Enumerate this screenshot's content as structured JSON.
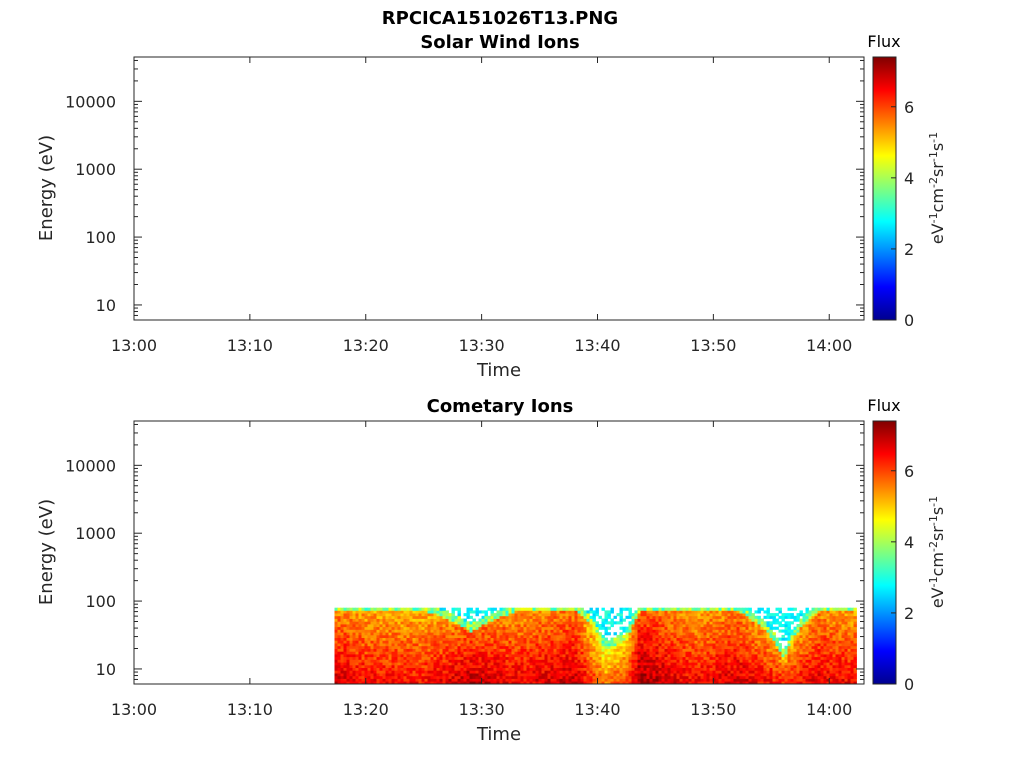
{
  "figure": {
    "title": "RPCICA151026T13.PNG"
  },
  "chart_data": [
    {
      "type": "heatmap",
      "title": "Solar Wind Ions",
      "xlabel": "Time",
      "ylabel": "Energy (eV)",
      "x_ticks": [
        "13:00",
        "13:10",
        "13:20",
        "13:30",
        "13:40",
        "13:50",
        "14:00"
      ],
      "xlim_minutes": [
        0,
        63
      ],
      "y_scale": "log",
      "y_ticks": [
        {
          "value": 10,
          "label": "10"
        },
        {
          "value": 100,
          "label": "100"
        },
        {
          "value": 1000,
          "label": "1000"
        },
        {
          "value": 10000,
          "label": "10000"
        }
      ],
      "ylim": [
        6,
        45000
      ],
      "colorbar": {
        "title": "Flux",
        "unit_label": {
          "base1": "eV",
          "exp1": "-1",
          "base2": "cm",
          "exp2": "-2",
          "base3": "sr",
          "exp3": "-1",
          "base4": "s",
          "exp4": "-1"
        },
        "range": [
          0,
          7.4
        ],
        "ticks": [
          "0",
          "2",
          "4",
          "6"
        ],
        "colormap": "jet"
      },
      "data": []
    },
    {
      "type": "heatmap",
      "title": "Cometary Ions",
      "xlabel": "Time",
      "ylabel": "Energy (eV)",
      "x_ticks": [
        "13:00",
        "13:10",
        "13:20",
        "13:30",
        "13:40",
        "13:50",
        "14:00"
      ],
      "xlim_minutes": [
        0,
        63
      ],
      "y_scale": "log",
      "y_ticks": [
        {
          "value": 10,
          "label": "10"
        },
        {
          "value": 100,
          "label": "100"
        },
        {
          "value": 1000,
          "label": "1000"
        },
        {
          "value": 10000,
          "label": "10000"
        }
      ],
      "ylim": [
        6,
        45000
      ],
      "colorbar": {
        "title": "Flux",
        "unit_label": {
          "base1": "eV",
          "exp1": "-1",
          "base2": "cm",
          "exp2": "-2",
          "base3": "sr",
          "exp3": "-1",
          "base4": "s",
          "exp4": "-1"
        },
        "range": [
          0,
          7.4
        ],
        "ticks": [
          "0",
          "2",
          "4",
          "6"
        ],
        "colormap": "jet"
      },
      "data_time_range_minutes": [
        17.3,
        62.3
      ],
      "energy_range_ev": [
        6,
        80
      ],
      "flux_profile": [
        {
          "t_min": 17.3,
          "low_energy_flux": 6.8,
          "upper_edge_ev": 80
        },
        {
          "t_min": 20,
          "low_energy_flux": 6.5,
          "upper_edge_ev": 80
        },
        {
          "t_min": 25,
          "low_energy_flux": 6.4,
          "upper_edge_ev": 80
        },
        {
          "t_min": 29,
          "low_energy_flux": 7.0,
          "upper_edge_ev": 40
        },
        {
          "t_min": 33,
          "low_energy_flux": 6.6,
          "upper_edge_ev": 80
        },
        {
          "t_min": 38,
          "low_energy_flux": 6.9,
          "upper_edge_ev": 80
        },
        {
          "t_min": 40.5,
          "low_energy_flux": 5.6,
          "upper_edge_ev": 22
        },
        {
          "t_min": 42.5,
          "low_energy_flux": 6.2,
          "upper_edge_ev": 30
        },
        {
          "t_min": 43.5,
          "low_energy_flux": 7.2,
          "upper_edge_ev": 80
        },
        {
          "t_min": 48,
          "low_energy_flux": 6.5,
          "upper_edge_ev": 80
        },
        {
          "t_min": 52,
          "low_energy_flux": 6.8,
          "upper_edge_ev": 80
        },
        {
          "t_min": 56,
          "low_energy_flux": 6.3,
          "upper_edge_ev": 15
        },
        {
          "t_min": 59,
          "low_energy_flux": 6.7,
          "upper_edge_ev": 80
        },
        {
          "t_min": 62.3,
          "low_energy_flux": 6.5,
          "upper_edge_ev": 80
        }
      ]
    }
  ]
}
